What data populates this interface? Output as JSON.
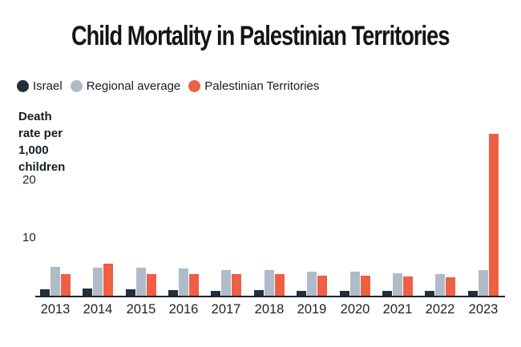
{
  "chart_data": {
    "type": "bar",
    "title": "Child Mortality in Palestinian Territories",
    "ylabel": "Death rate per 1,000 children",
    "ylabel_display": "Death\nrate per\n1,000\nchildren",
    "xlabel": "",
    "categories": [
      "2013",
      "2014",
      "2015",
      "2016",
      "2017",
      "2018",
      "2019",
      "2020",
      "2021",
      "2022",
      "2023"
    ],
    "series": [
      {
        "name": "Israel",
        "color": "#232f3b",
        "values": [
          1.1,
          1.2,
          1.1,
          1.0,
          0.9,
          1.0,
          0.9,
          0.9,
          0.9,
          0.9,
          0.9
        ]
      },
      {
        "name": "Regional average",
        "color": "#aebcc9",
        "values": [
          5.0,
          4.9,
          4.9,
          4.7,
          4.5,
          4.5,
          4.2,
          4.1,
          3.9,
          3.8,
          4.5
        ]
      },
      {
        "name": "Palestinian Territories",
        "color": "#ef5f44",
        "values": [
          3.8,
          5.6,
          3.7,
          3.8,
          3.7,
          3.7,
          3.5,
          3.5,
          3.3,
          3.2,
          28.1
        ]
      }
    ],
    "yticks": [
      10,
      20
    ],
    "ylim": [
      0,
      28.5
    ],
    "grid": false,
    "legend_position": "top-left",
    "axis_color": "#1b2530"
  }
}
